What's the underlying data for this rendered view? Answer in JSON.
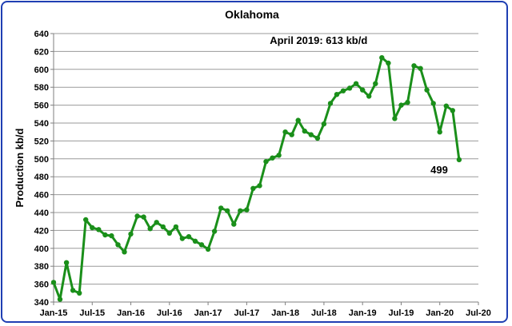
{
  "chart_data": {
    "type": "line",
    "title": "Oklahoma",
    "xlabel": "",
    "ylabel": "Production kb/d",
    "ylim": [
      340,
      640
    ],
    "yticks": [
      340,
      360,
      380,
      400,
      420,
      440,
      460,
      480,
      500,
      520,
      540,
      560,
      580,
      600,
      620,
      640
    ],
    "xtick_labels": [
      "Jan-15",
      "Jul-15",
      "Jan-16",
      "Jul-16",
      "Jan-17",
      "Jul-17",
      "Jan-18",
      "Jul-18",
      "Jan-19",
      "Jul-19",
      "Jan-20",
      "Jul-20"
    ],
    "x_start": "Jan-15",
    "x_end": "Jul-20",
    "grid": "horizontal",
    "color": "#1a8f1a",
    "series": [
      {
        "x": [
          "Jan-15",
          "Feb-15",
          "Mar-15",
          "Apr-15",
          "May-15",
          "Jun-15",
          "Jul-15",
          "Aug-15",
          "Sep-15",
          "Oct-15",
          "Nov-15",
          "Dec-15",
          "Jan-16",
          "Feb-16",
          "Mar-16",
          "Apr-16",
          "May-16",
          "Jun-16",
          "Jul-16",
          "Aug-16",
          "Sep-16",
          "Oct-16",
          "Nov-16",
          "Dec-16",
          "Jan-17",
          "Feb-17",
          "Mar-17",
          "Apr-17",
          "May-17",
          "Jun-17",
          "Jul-17",
          "Aug-17",
          "Sep-17",
          "Oct-17",
          "Nov-17",
          "Dec-17",
          "Jan-18",
          "Feb-18",
          "Mar-18",
          "Apr-18",
          "May-18",
          "Jun-18",
          "Jul-18",
          "Aug-18",
          "Sep-18",
          "Oct-18",
          "Nov-18",
          "Dec-18",
          "Jan-19",
          "Feb-19",
          "Mar-19",
          "Apr-19",
          "May-19",
          "Jun-19",
          "Jul-19",
          "Aug-19",
          "Sep-19",
          "Oct-19",
          "Nov-19",
          "Dec-19",
          "Jan-20",
          "Feb-20",
          "Mar-20",
          "Apr-20"
        ],
        "values": [
          362,
          343,
          384,
          353,
          350,
          432,
          423,
          421,
          415,
          414,
          404,
          396,
          416,
          436,
          435,
          422,
          429,
          424,
          417,
          424,
          411,
          413,
          408,
          404,
          399,
          419,
          445,
          442,
          427,
          442,
          443,
          467,
          470,
          497,
          501,
          504,
          530,
          527,
          543,
          531,
          527,
          523,
          539,
          562,
          572,
          576,
          579,
          584,
          577,
          570,
          584,
          613,
          607,
          545,
          560,
          563,
          604,
          601,
          577,
          562,
          530,
          559,
          554,
          499
        ]
      }
    ],
    "annotations": [
      {
        "text": "April 2019:  613 kb/d",
        "x": "Apr-19",
        "y": 613
      },
      {
        "text": "499",
        "x": "Apr-20",
        "y": 499
      }
    ]
  }
}
